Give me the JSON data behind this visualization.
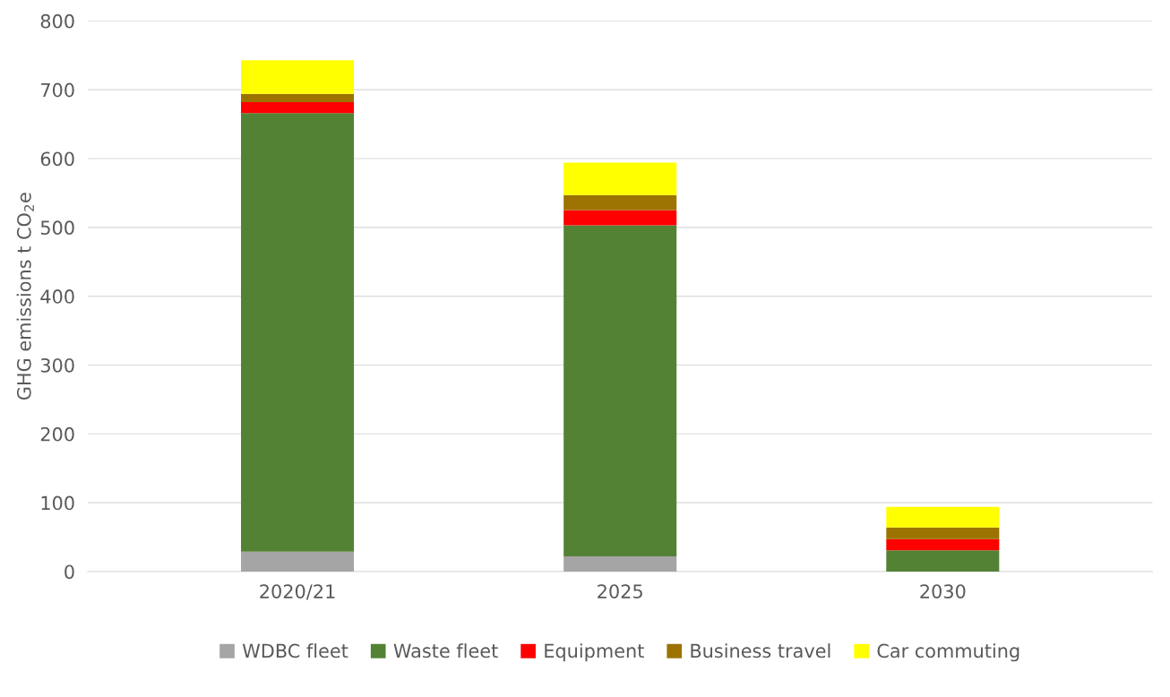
{
  "chart_data": {
    "type": "bar",
    "stacked": true,
    "ylabel": "GHG emissions t CO$_{2}$e",
    "categories": [
      "2020/21",
      "2025",
      "2030"
    ],
    "series": [
      {
        "name": "WDBC fleet",
        "color": "#a5a5a5",
        "values": [
          29,
          22,
          0
        ]
      },
      {
        "name": "Waste fleet",
        "color": "#548235",
        "values": [
          637,
          481,
          31
        ]
      },
      {
        "name": "Equipment",
        "color": "#ff0000",
        "values": [
          16,
          22,
          16
        ]
      },
      {
        "name": "Business travel",
        "color": "#9c7300",
        "values": [
          12,
          22,
          17
        ]
      },
      {
        "name": "Car commuting",
        "color": "#ffff00",
        "values": [
          49,
          47,
          30
        ]
      }
    ],
    "ylim": [
      0,
      800
    ],
    "yticks": [
      0,
      100,
      200,
      300,
      400,
      500,
      600,
      700,
      800
    ],
    "grid": "y",
    "legend": "bottom"
  }
}
